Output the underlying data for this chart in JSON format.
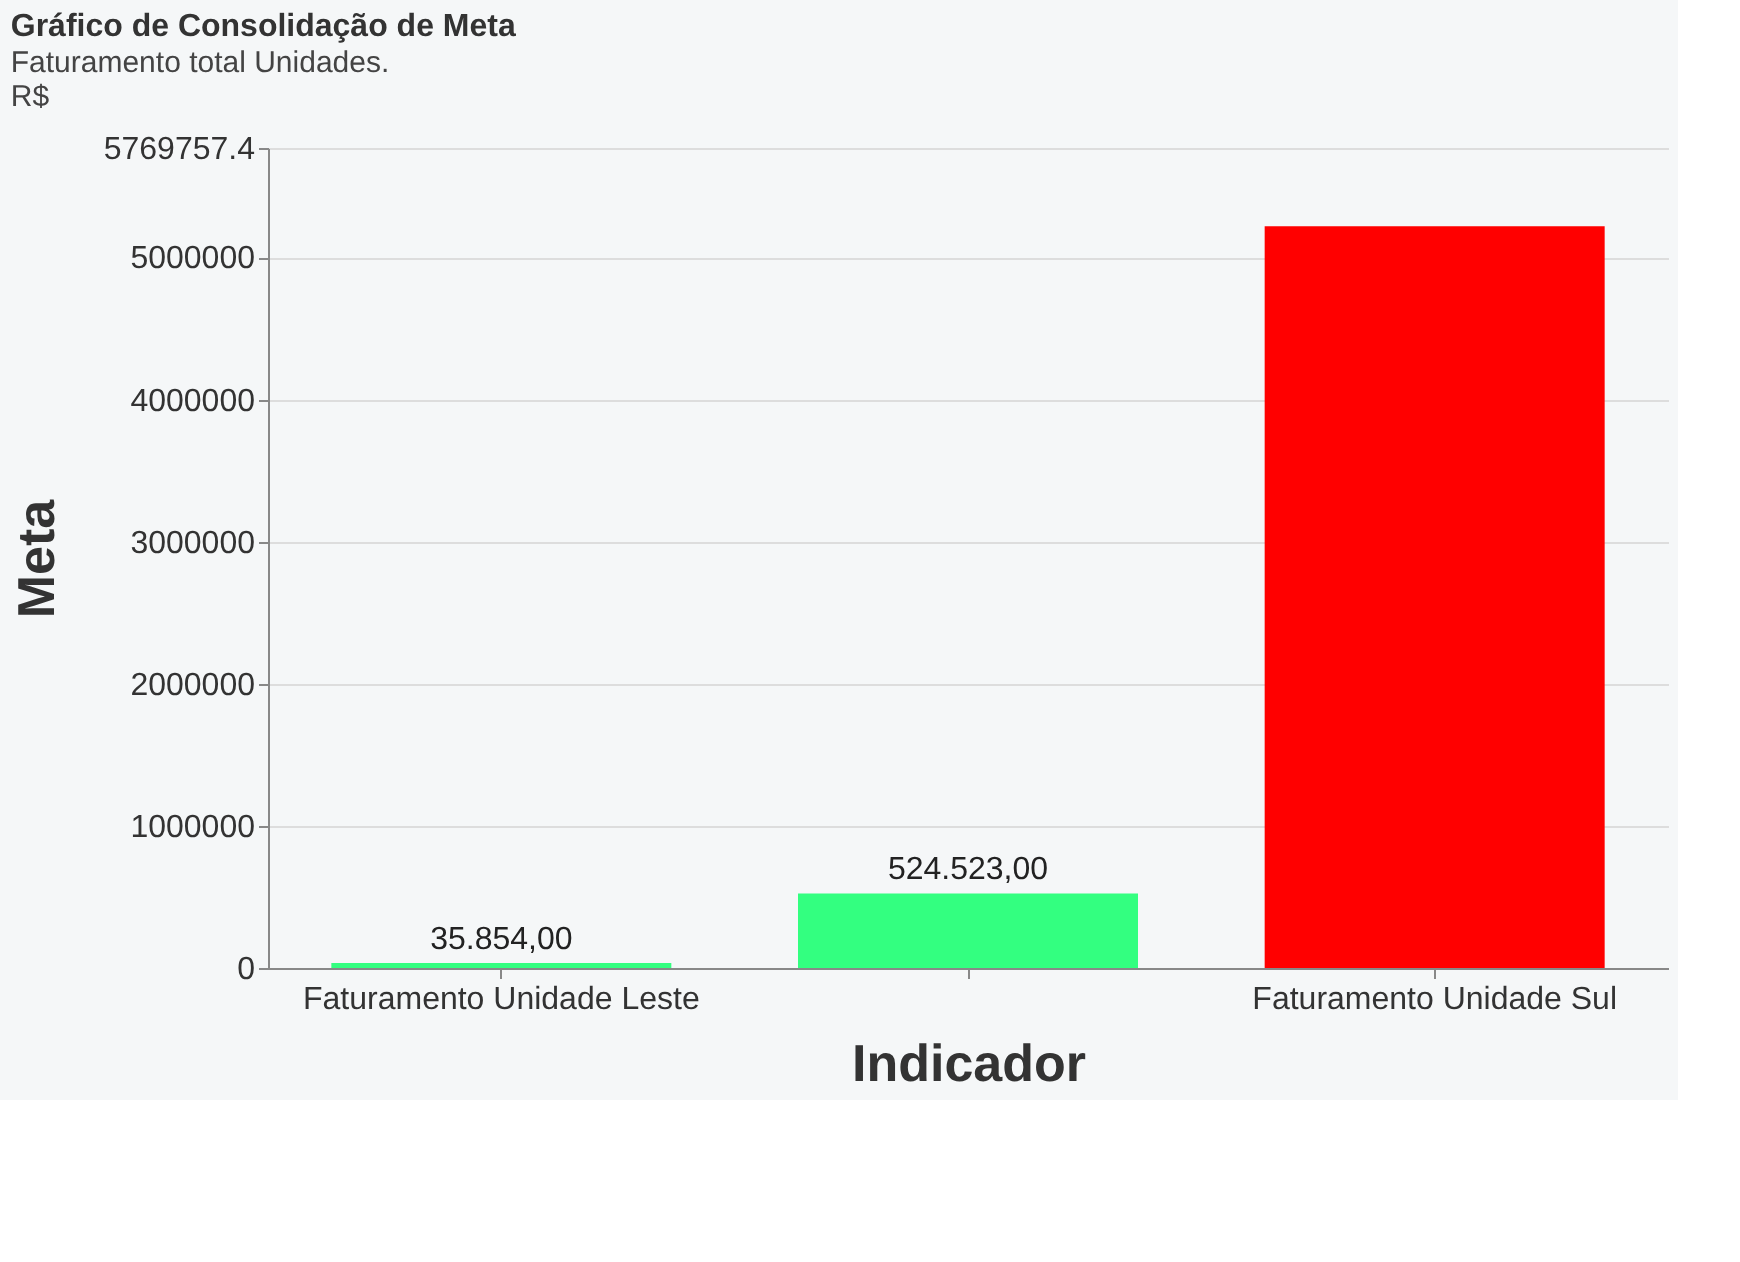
{
  "chart_data": {
    "type": "bar",
    "title": "Gráfico de Consolidação de Meta",
    "subtitle": "Faturamento total Unidades.",
    "annotations": [
      "R$"
    ],
    "xlabel": "Indicador",
    "ylabel": "Meta",
    "categories": [
      "Faturamento Unidade Leste",
      null,
      "Faturamento Unidade Sul"
    ],
    "values": [
      35854,
      524523,
      5220000
    ],
    "colors": [
      "#33ff80",
      "#33ff80",
      "#ff0000"
    ],
    "value_labels": [
      "35.854,00",
      "524.523,00",
      null
    ],
    "ylim": [
      0,
      5769757.4
    ],
    "yticks": [
      0,
      1000000,
      2000000,
      3000000,
      4000000,
      5000000,
      5769757.4
    ],
    "grid": "y"
  }
}
